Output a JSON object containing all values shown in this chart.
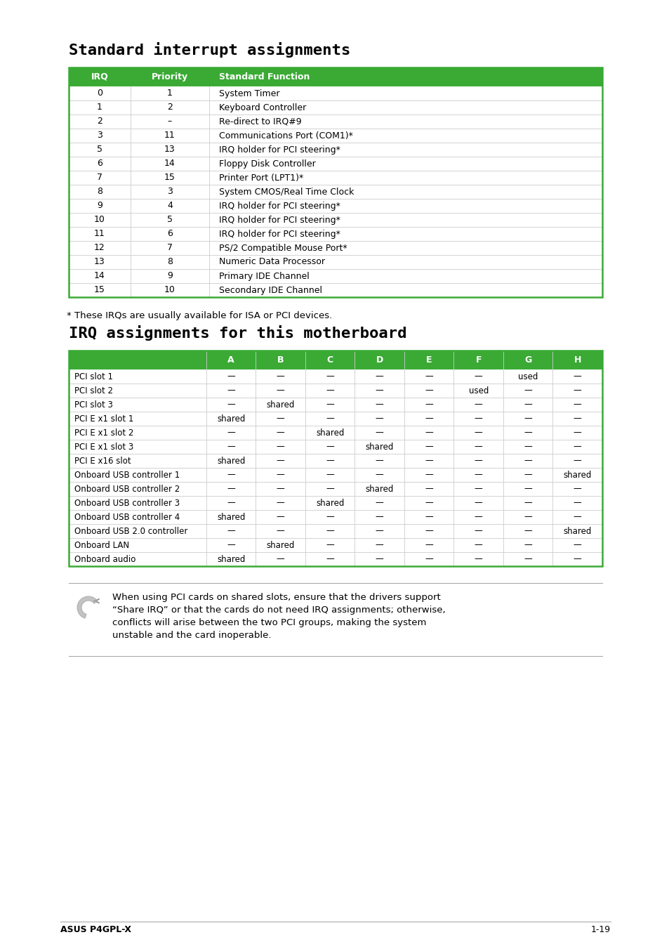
{
  "title1": "Standard interrupt assignments",
  "title2": "IRQ assignments for this motherboard",
  "header_color": "#3aaa35",
  "header_text_color": "#ffffff",
  "table1_header": [
    "IRQ",
    "Priority",
    "Standard Function"
  ],
  "table1_rows": [
    [
      "0",
      "1",
      "System Timer"
    ],
    [
      "1",
      "2",
      "Keyboard Controller"
    ],
    [
      "2",
      "–",
      "Re-direct to IRQ#9"
    ],
    [
      "3",
      "11",
      "Communications Port (COM1)*"
    ],
    [
      "5",
      "13",
      "IRQ holder for PCI steering*"
    ],
    [
      "6",
      "14",
      "Floppy Disk Controller"
    ],
    [
      "7",
      "15",
      "Printer Port (LPT1)*"
    ],
    [
      "8",
      "3",
      "System CMOS/Real Time Clock"
    ],
    [
      "9",
      "4",
      "IRQ holder for PCI steering*"
    ],
    [
      "10",
      "5",
      "IRQ holder for PCI steering*"
    ],
    [
      "11",
      "6",
      "IRQ holder for PCI steering*"
    ],
    [
      "12",
      "7",
      "PS/2 Compatible Mouse Port*"
    ],
    [
      "13",
      "8",
      "Numeric Data Processor"
    ],
    [
      "14",
      "9",
      "Primary IDE Channel"
    ],
    [
      "15",
      "10",
      "Secondary IDE Channel"
    ]
  ],
  "table2_header": [
    "",
    "A",
    "B",
    "C",
    "D",
    "E",
    "F",
    "G",
    "H"
  ],
  "table2_rows": [
    [
      "PCI slot 1",
      "—",
      "—",
      "—",
      "—",
      "—",
      "—",
      "used",
      "—"
    ],
    [
      "PCI slot 2",
      "—",
      "—",
      "—",
      "—",
      "—",
      "used",
      "—",
      "—"
    ],
    [
      "PCI slot 3",
      "—",
      "shared",
      "—",
      "—",
      "—",
      "—",
      "—",
      "—"
    ],
    [
      "PCI E x1 slot 1",
      "shared",
      "—",
      "—",
      "—",
      "—",
      "—",
      "—",
      "—"
    ],
    [
      "PCI E x1 slot 2",
      "—",
      "—",
      "shared",
      "—",
      "—",
      "—",
      "—",
      "—"
    ],
    [
      "PCI E x1 slot 3",
      "—",
      "—",
      "—",
      "shared",
      "—",
      "—",
      "—",
      "—"
    ],
    [
      "PCI E x16 slot",
      "shared",
      "—",
      "—",
      "—",
      "—",
      "—",
      "—",
      "—"
    ],
    [
      "Onboard USB controller 1",
      "—",
      "—",
      "—",
      "—",
      "—",
      "—",
      "—",
      "shared"
    ],
    [
      "Onboard USB controller 2",
      "—",
      "—",
      "—",
      "shared",
      "—",
      "—",
      "—",
      "—"
    ],
    [
      "Onboard USB controller 3",
      "—",
      "—",
      "shared",
      "—",
      "—",
      "—",
      "—",
      "—"
    ],
    [
      "Onboard USB controller 4",
      "shared",
      "—",
      "—",
      "—",
      "—",
      "—",
      "—",
      "—"
    ],
    [
      "Onboard USB 2.0 controller",
      "—",
      "—",
      "—",
      "—",
      "—",
      "—",
      "—",
      "shared"
    ],
    [
      "Onboard LAN",
      "—",
      "shared",
      "—",
      "—",
      "—",
      "—",
      "—",
      "—"
    ],
    [
      "Onboard audio",
      "shared",
      "—",
      "—",
      "—",
      "—",
      "—",
      "—",
      "—"
    ]
  ],
  "footnote": "* These IRQs are usually available for ISA or PCI devices.",
  "note_lines": [
    "When using PCI cards on shared slots, ensure that the drivers support",
    "“Share IRQ” or that the cards do not need IRQ assignments; otherwise,",
    "conflicts will arise between the two PCI groups, making the system",
    "unstable and the card inoperable."
  ],
  "footer_left": "ASUS P4GPL-X",
  "footer_right": "1-19",
  "bg_color": "#ffffff",
  "border_color": "#3aaa35",
  "text_color": "#000000",
  "green": "#3aaa35",
  "white": "#ffffff",
  "gray_line": "#aaaaaa",
  "gray_sep": "#cccccc"
}
